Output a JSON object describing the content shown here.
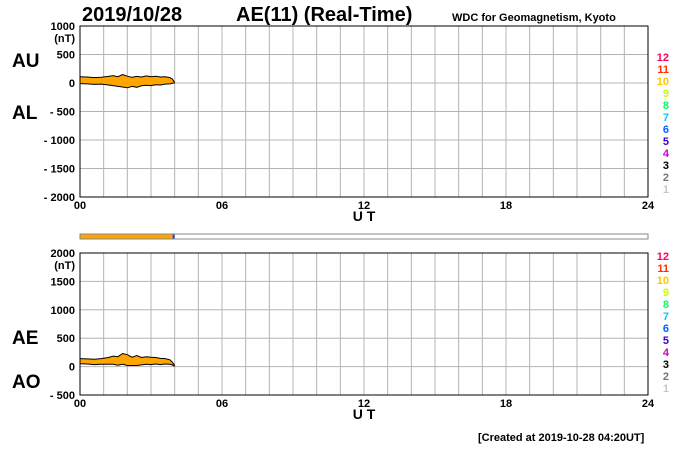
{
  "header": {
    "date": "2019/10/28",
    "title": "AE(11) (Real-Time)",
    "organization": "WDC for Geomagnetism, Kyoto"
  },
  "footer": {
    "created": "[Created at 2019-10-28 04:20UT]"
  },
  "colors": {
    "fill": "#ffa500",
    "grid": "#b4b4b4",
    "stations": [
      "#c8c8c8",
      "#787878",
      "#000000",
      "#c800c8",
      "#3c00c8",
      "#0064ff",
      "#00c8ff",
      "#00ff64",
      "#c8ff00",
      "#ffc800",
      "#ff3200",
      "#ff0064"
    ]
  },
  "station_labels": [
    "12",
    "11",
    "10",
    "9",
    "8",
    "7",
    "6",
    "5",
    "4",
    "3",
    "2",
    "1"
  ],
  "chart_data": [
    {
      "type": "area",
      "panel": "AU/AL",
      "labels": {
        "upper": "AU",
        "lower": "AL"
      },
      "ylabel": "(nT)",
      "xlabel": "U T",
      "xlim": [
        0,
        24
      ],
      "ylim": [
        -2000,
        1000
      ],
      "yticks": [
        1000,
        500,
        0,
        -500,
        -1000,
        -1500,
        -2000
      ],
      "ytick_labels": [
        "1000",
        "500",
        "0",
        "- 500",
        "- 1000",
        "- 1500",
        "- 2000"
      ],
      "xticks": [
        0,
        6,
        12,
        18,
        24
      ],
      "xtick_labels": [
        "00",
        "06",
        "12",
        "18",
        "24"
      ],
      "grid": true,
      "x": [
        0.0,
        0.3,
        0.6,
        0.9,
        1.2,
        1.4,
        1.6,
        1.8,
        2.0,
        2.2,
        2.4,
        2.6,
        2.8,
        3.0,
        3.2,
        3.4,
        3.6,
        3.8,
        3.9,
        4.0
      ],
      "series": [
        {
          "name": "AU",
          "values": [
            110,
            105,
            95,
            100,
            115,
            130,
            110,
            150,
            120,
            100,
            115,
            105,
            125,
            110,
            120,
            105,
            110,
            95,
            70,
            10
          ]
        },
        {
          "name": "AL",
          "values": [
            -10,
            -15,
            -25,
            -20,
            -35,
            -45,
            -60,
            -70,
            -85,
            -60,
            -75,
            -50,
            -40,
            -45,
            -30,
            -35,
            -20,
            -15,
            -5,
            0
          ]
        }
      ]
    },
    {
      "type": "area",
      "panel": "AE/AO",
      "labels": {
        "upper": "AE",
        "lower": "AO"
      },
      "ylabel": "(nT)",
      "xlabel": "U T",
      "xlim": [
        0,
        24
      ],
      "ylim": [
        -500,
        2000
      ],
      "yticks": [
        2000,
        1500,
        1000,
        500,
        0,
        -500
      ],
      "ytick_labels": [
        "2000",
        "1500",
        "1000",
        "500",
        "0",
        "- 500"
      ],
      "xticks": [
        0,
        6,
        12,
        18,
        24
      ],
      "xtick_labels": [
        "00",
        "06",
        "12",
        "18",
        "24"
      ],
      "grid": true,
      "x": [
        0.0,
        0.3,
        0.6,
        0.9,
        1.2,
        1.4,
        1.6,
        1.8,
        2.0,
        2.2,
        2.4,
        2.6,
        2.8,
        3.0,
        3.2,
        3.4,
        3.6,
        3.8,
        3.9,
        4.0
      ],
      "series": [
        {
          "name": "AE",
          "values": [
            140,
            135,
            130,
            140,
            160,
            185,
            175,
            230,
            210,
            165,
            195,
            160,
            175,
            165,
            160,
            145,
            140,
            120,
            80,
            20
          ]
        },
        {
          "name": "AO",
          "values": [
            50,
            45,
            35,
            40,
            40,
            40,
            25,
            40,
            20,
            20,
            20,
            30,
            40,
            35,
            45,
            35,
            45,
            40,
            30,
            5
          ]
        }
      ]
    }
  ],
  "coverage": {
    "covered_until_ut": 4.0,
    "total_ut": 24
  }
}
